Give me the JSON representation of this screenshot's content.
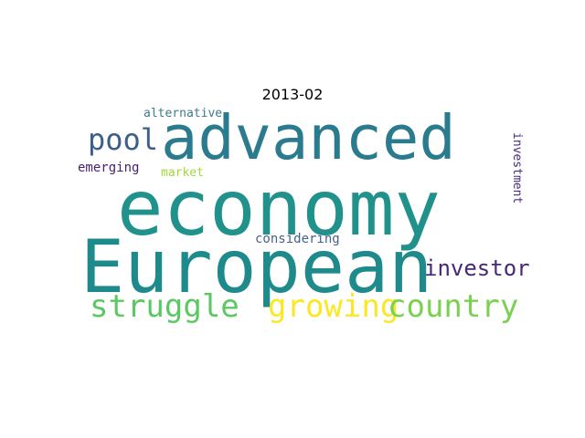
{
  "title": "2013-02",
  "words": [
    {
      "text": "economy",
      "color": "#21918c"
    },
    {
      "text": "European",
      "color": "#1f8a8b"
    },
    {
      "text": "advanced",
      "color": "#2b7b8e"
    },
    {
      "text": "pool",
      "color": "#3b5f8a"
    },
    {
      "text": "struggle",
      "color": "#5cc863"
    },
    {
      "text": "growing",
      "color": "#fde725"
    },
    {
      "text": "country",
      "color": "#7ad151"
    },
    {
      "text": "investor",
      "color": "#482878"
    },
    {
      "text": "alternative",
      "color": "#3e7a8c"
    },
    {
      "text": "emerging",
      "color": "#482071"
    },
    {
      "text": "market",
      "color": "#a0da39"
    },
    {
      "text": "considering",
      "color": "#46618a"
    },
    {
      "text": "investment",
      "color": "#472d7b"
    }
  ]
}
